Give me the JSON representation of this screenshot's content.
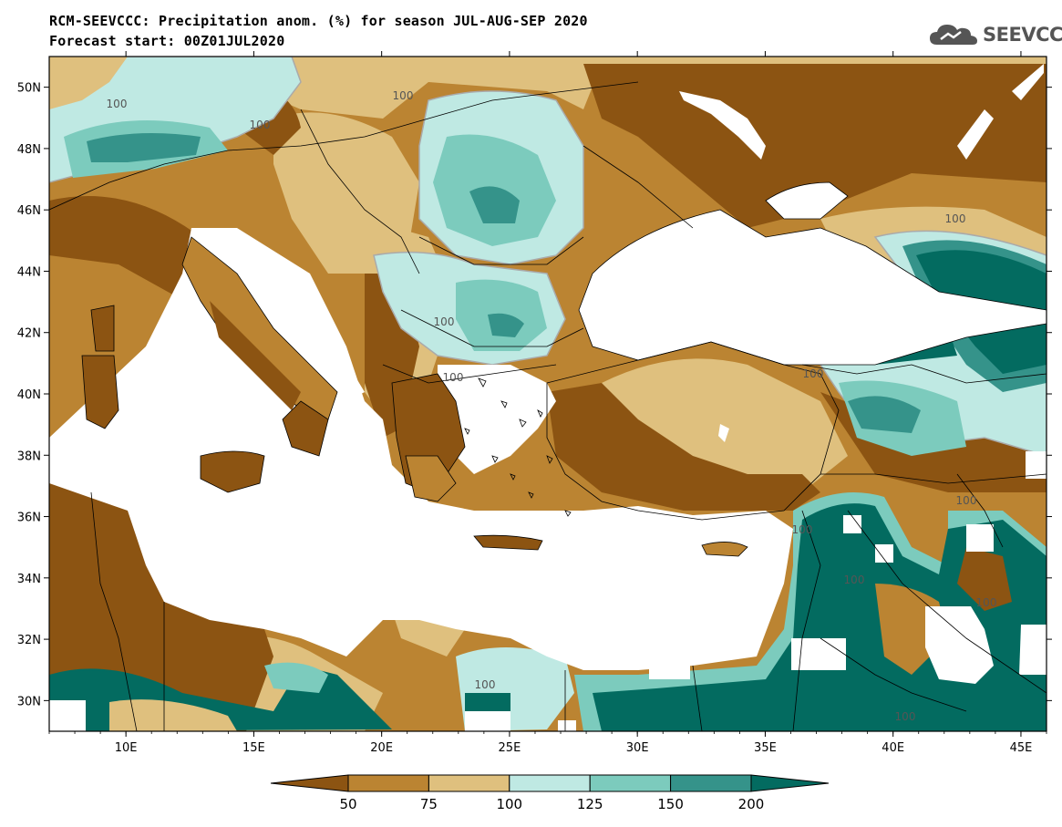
{
  "header": {
    "title_line1": "RCM-SEEVCCC: Precipitation anom. (%) for season JUL-AUG-SEP 2020",
    "title_line2": "Forecast start: 00Z01JUL2020",
    "logo_text": "SEEVCCC"
  },
  "map": {
    "lon_range": [
      7,
      46
    ],
    "lat_range": [
      29,
      51
    ],
    "lat_ticks": [
      "50N",
      "48N",
      "46N",
      "44N",
      "42N",
      "40N",
      "38N",
      "36N",
      "34N",
      "32N",
      "30N"
    ],
    "lon_ticks": [
      "10E",
      "15E",
      "20E",
      "25E",
      "30E",
      "35E",
      "40E",
      "45E"
    ],
    "contour_label": "100",
    "fill_colors": {
      "lt50": "#8c5412",
      "50_75": "#bb8432",
      "75_100": "#dfc07e",
      "100_125": "#bfe9e3",
      "125_150": "#7ccbbd",
      "150_200": "#35938a",
      "gt200": "#036b60",
      "sea": "#ffffff"
    }
  },
  "colorbar": {
    "labels": [
      "50",
      "75",
      "100",
      "125",
      "150",
      "200"
    ],
    "colors": [
      "#8c5412",
      "#bb8432",
      "#dfc07e",
      "#bfe9e3",
      "#7ccbbd",
      "#35938a",
      "#036b60"
    ]
  }
}
